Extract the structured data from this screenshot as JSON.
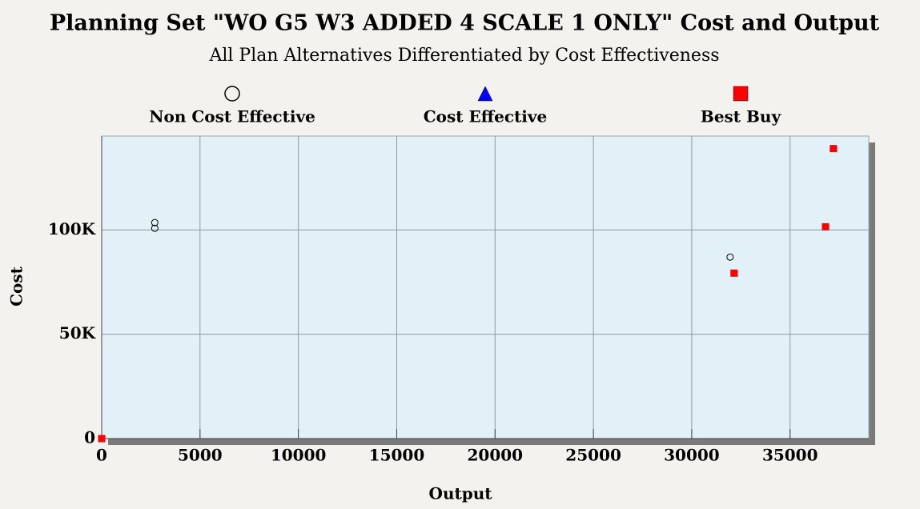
{
  "chart_data": {
    "type": "scatter",
    "title": "Planning Set \"WO G5 W3 ADDED 4 SCALE 1 ONLY\" Cost and Output",
    "subtitle": "All Plan Alternatives Differentiated by Cost Effectiveness",
    "x_label": "Output",
    "y_label": "Cost",
    "xlim": [
      0,
      39000
    ],
    "ylim": [
      0,
      145000
    ],
    "xticks": [
      0,
      5000,
      10000,
      15000,
      20000,
      25000,
      30000,
      35000
    ],
    "yticks": [
      0,
      {
        "value": 50000,
        "label": "50K"
      },
      {
        "value": 100000,
        "label": "100K"
      }
    ],
    "grid": true,
    "series": [
      {
        "name": "Non Cost Effective",
        "marker": "circle",
        "color": "#000000",
        "x": [
          2700,
          2700,
          31950
        ],
        "values": [
          103500,
          100800,
          87000
        ]
      },
      {
        "name": "Cost Effective",
        "marker": "triangle",
        "color": "#0000ff",
        "x": [],
        "values": []
      },
      {
        "name": "Best Buy",
        "marker": "square",
        "color": "#ff0000",
        "x": [
          0,
          37200,
          36800,
          32150
        ],
        "values": [
          0,
          139000,
          101500,
          79300
        ]
      }
    ]
  }
}
